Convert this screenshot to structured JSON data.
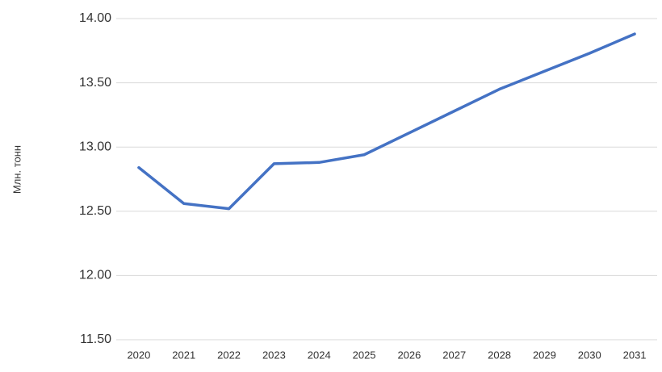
{
  "chart_data": {
    "type": "line",
    "y_label": "Млн. тонн",
    "categories": [
      "2020",
      "2021",
      "2022",
      "2023",
      "2024",
      "2025",
      "2026",
      "2027",
      "2028",
      "2029",
      "2030",
      "2031"
    ],
    "series": [
      {
        "name": null,
        "color": "#4472c4",
        "values": [
          12.84,
          12.56,
          12.52,
          12.87,
          12.88,
          12.94,
          13.11,
          13.28,
          13.45,
          13.59,
          13.73,
          13.88
        ]
      }
    ],
    "ylim": [
      11.5,
      14.0
    ],
    "yticks": [
      {
        "value": 11.5,
        "label": "11.50"
      },
      {
        "value": 12,
        "label": "12.00"
      },
      {
        "value": 12.5,
        "label": "12.50"
      },
      {
        "value": 13,
        "label": "13.00"
      },
      {
        "value": 13.5,
        "label": "13.50"
      },
      {
        "value": 14,
        "label": "14.00"
      }
    ],
    "grid": true
  }
}
